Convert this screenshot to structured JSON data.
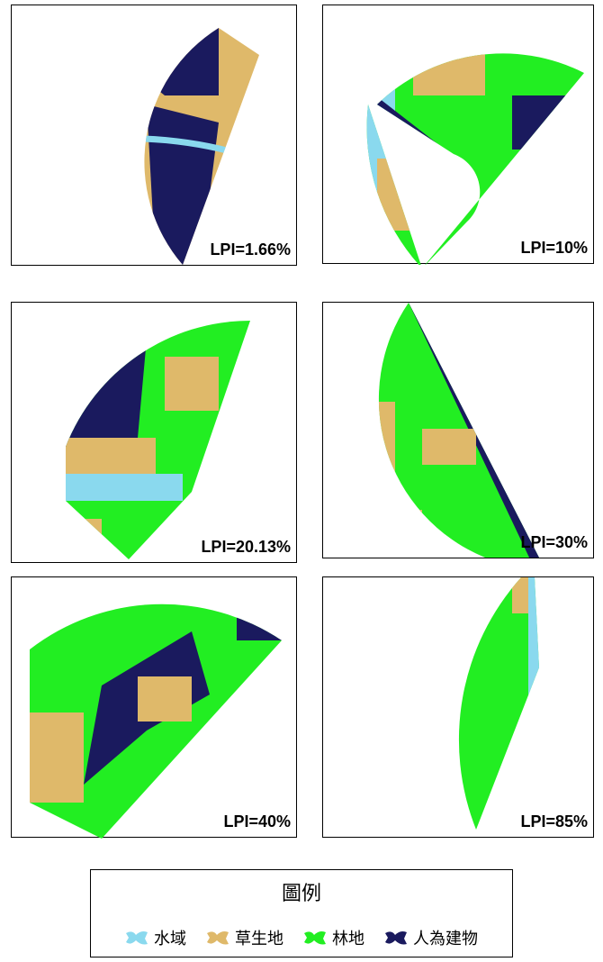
{
  "panels": [
    {
      "label": "LPI=1.66%"
    },
    {
      "label": "LPI=10%"
    },
    {
      "label": "LPI=20.13%"
    },
    {
      "label": "LPI=30%"
    },
    {
      "label": "LPI=40%"
    },
    {
      "label": "LPI=85%"
    }
  ],
  "legend": {
    "title": "圖例",
    "items": [
      {
        "label": "水域",
        "color": "#8ad9ee"
      },
      {
        "label": "草生地",
        "color": "#dfb96a"
      },
      {
        "label": "林地",
        "color": "#22ee22"
      },
      {
        "label": "人為建物",
        "color": "#1a1a5e"
      }
    ]
  }
}
